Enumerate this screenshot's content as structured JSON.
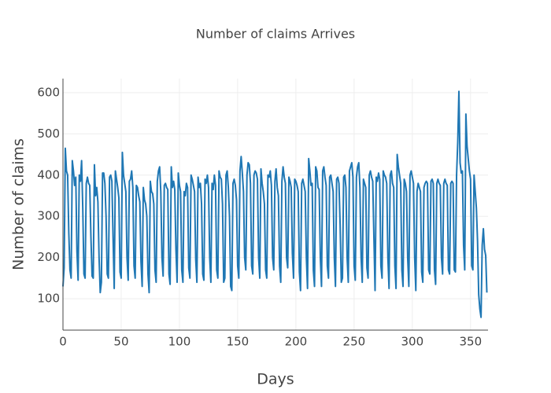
{
  "chart_data": {
    "type": "line",
    "title": "Number of claims Arrives",
    "x_label": "Days",
    "y_label": "Number of claims",
    "xlim": [
      0,
      365
    ],
    "ylim": [
      24,
      634
    ],
    "xticks": [
      0,
      50,
      100,
      150,
      200,
      250,
      300,
      350
    ],
    "yticks": [
      100,
      200,
      300,
      400,
      500,
      600
    ],
    "grid": true,
    "x": [
      0,
      1,
      2,
      3,
      4,
      5,
      6,
      7,
      8,
      9,
      10,
      11,
      12,
      13,
      14,
      15,
      16,
      17,
      18,
      19,
      20,
      21,
      22,
      23,
      24,
      25,
      26,
      27,
      28,
      29,
      30,
      31,
      32,
      33,
      34,
      35,
      36,
      37,
      38,
      39,
      40,
      41,
      42,
      43,
      44,
      45,
      46,
      47,
      48,
      49,
      50,
      51,
      52,
      53,
      54,
      55,
      56,
      57,
      58,
      59,
      60,
      61,
      62,
      63,
      64,
      65,
      66,
      67,
      68,
      69,
      70,
      71,
      72,
      73,
      74,
      75,
      76,
      77,
      78,
      79,
      80,
      81,
      82,
      83,
      84,
      85,
      86,
      87,
      88,
      89,
      90,
      91,
      92,
      93,
      94,
      95,
      96,
      97,
      98,
      99,
      100,
      101,
      102,
      103,
      104,
      105,
      106,
      107,
      108,
      109,
      110,
      111,
      112,
      113,
      114,
      115,
      116,
      117,
      118,
      119,
      120,
      121,
      122,
      123,
      124,
      125,
      126,
      127,
      128,
      129,
      130,
      131,
      132,
      133,
      134,
      135,
      136,
      137,
      138,
      139,
      140,
      141,
      142,
      143,
      144,
      145,
      146,
      147,
      148,
      149,
      150,
      151,
      152,
      153,
      154,
      155,
      156,
      157,
      158,
      159,
      160,
      161,
      162,
      163,
      164,
      165,
      166,
      167,
      168,
      169,
      170,
      171,
      172,
      173,
      174,
      175,
      176,
      177,
      178,
      179,
      180,
      181,
      182,
      183,
      184,
      185,
      186,
      187,
      188,
      189,
      190,
      191,
      192,
      193,
      194,
      195,
      196,
      197,
      198,
      199,
      200,
      201,
      202,
      203,
      204,
      205,
      206,
      207,
      208,
      209,
      210,
      211,
      212,
      213,
      214,
      215,
      216,
      217,
      218,
      219,
      220,
      221,
      222,
      223,
      224,
      225,
      226,
      227,
      228,
      229,
      230,
      231,
      232,
      233,
      234,
      235,
      236,
      237,
      238,
      239,
      240,
      241,
      242,
      243,
      244,
      245,
      246,
      247,
      248,
      249,
      250,
      251,
      252,
      253,
      254,
      255,
      256,
      257,
      258,
      259,
      260,
      261,
      262,
      263,
      264,
      265,
      266,
      267,
      268,
      269,
      270,
      271,
      272,
      273,
      274,
      275,
      276,
      277,
      278,
      279,
      280,
      281,
      282,
      283,
      284,
      285,
      286,
      287,
      288,
      289,
      290,
      291,
      292,
      293,
      294,
      295,
      296,
      297,
      298,
      299,
      300,
      301,
      302,
      303,
      304,
      305,
      306,
      307,
      308,
      309,
      310,
      311,
      312,
      313,
      314,
      315,
      316,
      317,
      318,
      319,
      320,
      321,
      322,
      323,
      324,
      325,
      326,
      327,
      328,
      329,
      330,
      331,
      332,
      333,
      334,
      335,
      336,
      337,
      338,
      339,
      340,
      341,
      342,
      343,
      344,
      345,
      346,
      347,
      348,
      349,
      350,
      351,
      352,
      353,
      354,
      355,
      356,
      357,
      358,
      359,
      360,
      361,
      362,
      363,
      364
    ],
    "series": [
      {
        "color": "#1f77b4",
        "values": [
          130,
          175,
          465,
          410,
          400,
          260,
          170,
          150,
          435,
          410,
          375,
          395,
          215,
          145,
          400,
          385,
          435,
          320,
          160,
          150,
          380,
          395,
          380,
          375,
          250,
          155,
          150,
          425,
          350,
          370,
          335,
          200,
          115,
          140,
          405,
          405,
          380,
          300,
          160,
          150,
          395,
          400,
          385,
          250,
          125,
          410,
          390,
          370,
          345,
          165,
          150,
          455,
          400,
          380,
          360,
          200,
          145,
          385,
          390,
          410,
          370,
          180,
          150,
          375,
          370,
          350,
          335,
          190,
          130,
          370,
          340,
          330,
          300,
          160,
          115,
          385,
          360,
          355,
          330,
          170,
          140,
          385,
          410,
          420,
          360,
          200,
          155,
          375,
          380,
          370,
          365,
          160,
          135,
          420,
          370,
          385,
          365,
          220,
          140,
          405,
          375,
          360,
          170,
          140,
          360,
          350,
          380,
          370,
          175,
          150,
          400,
          390,
          375,
          360,
          195,
          140,
          395,
          370,
          380,
          330,
          160,
          145,
          390,
          380,
          400,
          370,
          200,
          140,
          380,
          365,
          400,
          375,
          170,
          150,
          410,
          395,
          390,
          330,
          140,
          150,
          400,
          410,
          370,
          300,
          130,
          120,
          380,
          390,
          375,
          340,
          180,
          150,
          410,
          445,
          405,
          360,
          200,
          170,
          400,
          430,
          425,
          380,
          180,
          160,
          400,
          410,
          405,
          390,
          200,
          150,
          415,
          380,
          360,
          330,
          170,
          150,
          400,
          395,
          410,
          375,
          200,
          170,
          385,
          415,
          370,
          350,
          180,
          140,
          385,
          420,
          395,
          380,
          200,
          175,
          395,
          385,
          370,
          210,
          150,
          390,
          385,
          375,
          360,
          165,
          120,
          380,
          390,
          375,
          360,
          200,
          125,
          440,
          410,
          375,
          380,
          170,
          130,
          420,
          410,
          370,
          365,
          200,
          130,
          410,
          420,
          395,
          375,
          180,
          150,
          395,
          400,
          380,
          360,
          200,
          130,
          390,
          395,
          380,
          280,
          140,
          150,
          395,
          400,
          370,
          200,
          140,
          410,
          420,
          430,
          395,
          180,
          145,
          395,
          420,
          430,
          370,
          200,
          140,
          390,
          380,
          370,
          175,
          150,
          400,
          410,
          395,
          385,
          250,
          120,
          395,
          385,
          405,
          390,
          180,
          150,
          410,
          400,
          395,
          380,
          200,
          125,
          400,
          410,
          380,
          370,
          180,
          125,
          450,
          420,
          400,
          380,
          170,
          130,
          390,
          380,
          360,
          200,
          130,
          400,
          410,
          395,
          380,
          200,
          120,
          360,
          380,
          370,
          360,
          165,
          140,
          370,
          380,
          385,
          380,
          170,
          160,
          385,
          390,
          380,
          170,
          135,
          380,
          390,
          380,
          375,
          200,
          160,
          380,
          390,
          380,
          375,
          170,
          160,
          380,
          385,
          380,
          170,
          165,
          400,
          480,
          603,
          430,
          405,
          410,
          230,
          170,
          548,
          470,
          440,
          410,
          390,
          180,
          170,
          400,
          360,
          320,
          240,
          110,
          75,
          55,
          230,
          270,
          220,
          205,
          115
        ]
      }
    ]
  }
}
